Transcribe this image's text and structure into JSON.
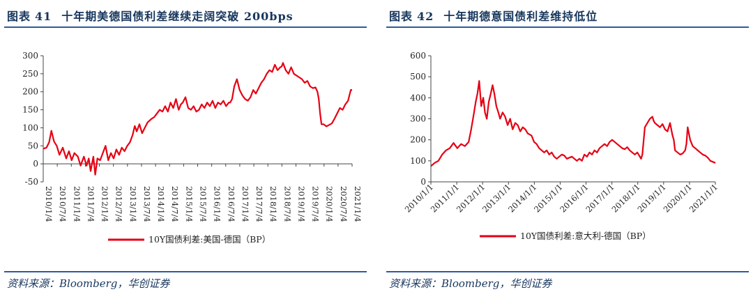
{
  "charts": [
    {
      "title_prefix": "图表",
      "title_number": "41",
      "title_text": "十年期美德国债利差继续走阔突破 200bps",
      "source": "资料来源：Bloomberg，华创证券",
      "chart_data": {
        "type": "line",
        "title": "十年期美德国债利差继续走阔突破 200bps",
        "x_ticks": [
          "2010/1/4",
          "2010/7/4",
          "2011/1/4",
          "2011/7/4",
          "2012/1/4",
          "2012/7/4",
          "2013/1/4",
          "2013/7/4",
          "2014/1/4",
          "2014/7/4",
          "2015/1/4",
          "2015/7/4",
          "2016/1/4",
          "2016/7/4",
          "2017/1/4",
          "2017/7/4",
          "2018/1/4",
          "2018/7/4",
          "2019/1/4",
          "2019/7/4",
          "2020/1/4",
          "2020/7/4",
          "2021/1/4"
        ],
        "yticks": [
          -50,
          0,
          50,
          100,
          150,
          200,
          250,
          300
        ],
        "ylim": [
          -50,
          300
        ],
        "xlim": [
          2010.0,
          2021.4
        ],
        "legend": "top-center-below",
        "series": [
          {
            "name": "10Y国债利差:美国-德国（BP）",
            "color": "#e60012",
            "x": [
              2010.0,
              2010.12,
              2010.22,
              2010.3,
              2010.4,
              2010.5,
              2010.6,
              2010.72,
              2010.85,
              2010.95,
              2011.05,
              2011.15,
              2011.28,
              2011.38,
              2011.5,
              2011.6,
              2011.68,
              2011.75,
              2011.85,
              2011.92,
              2012.0,
              2012.1,
              2012.2,
              2012.3,
              2012.4,
              2012.5,
              2012.6,
              2012.7,
              2012.8,
              2012.9,
              2013.0,
              2013.1,
              2013.2,
              2013.3,
              2013.38,
              2013.45,
              2013.55,
              2013.65,
              2013.75,
              2013.85,
              2014.0,
              2014.1,
              2014.2,
              2014.3,
              2014.4,
              2014.5,
              2014.6,
              2014.7,
              2014.8,
              2014.9,
              2015.0,
              2015.08,
              2015.15,
              2015.25,
              2015.35,
              2015.45,
              2015.55,
              2015.65,
              2015.75,
              2015.85,
              2015.95,
              2016.05,
              2016.15,
              2016.25,
              2016.35,
              2016.45,
              2016.55,
              2016.65,
              2016.75,
              2016.85,
              2016.9,
              2016.97,
              2017.05,
              2017.15,
              2017.25,
              2017.35,
              2017.45,
              2017.55,
              2017.65,
              2017.75,
              2017.85,
              2017.95,
              2018.05,
              2018.15,
              2018.25,
              2018.35,
              2018.45,
              2018.55,
              2018.65,
              2018.75,
              2018.8,
              2018.85,
              2018.95,
              2019.05,
              2019.15,
              2019.25,
              2019.35,
              2019.45,
              2019.55,
              2019.65,
              2019.75,
              2019.85,
              2019.95,
              2020.05,
              2020.12,
              2020.17,
              2020.22,
              2020.27,
              2020.35,
              2020.45,
              2020.55,
              2020.65,
              2020.75,
              2020.85,
              2020.95,
              2021.05,
              2021.15,
              2021.25,
              2021.35,
              2021.4
            ],
            "y": [
              42,
              45,
              60,
              92,
              62,
              50,
              25,
              45,
              15,
              35,
              10,
              30,
              20,
              -5,
              20,
              -5,
              15,
              -20,
              20,
              -30,
              15,
              10,
              30,
              50,
              10,
              30,
              15,
              40,
              25,
              45,
              35,
              50,
              60,
              80,
              105,
              90,
              110,
              85,
              100,
              115,
              125,
              130,
              140,
              150,
              145,
              160,
              145,
              170,
              155,
              180,
              150,
              165,
              170,
              185,
              155,
              150,
              160,
              145,
              150,
              165,
              155,
              170,
              160,
              175,
              155,
              170,
              165,
              175,
              160,
              170,
              170,
              180,
              215,
              235,
              205,
              190,
              180,
              175,
              185,
              205,
              195,
              210,
              225,
              235,
              250,
              260,
              255,
              275,
              260,
              268,
              270,
              280,
              260,
              250,
              268,
              250,
              245,
              240,
              235,
              225,
              230,
              215,
              210,
              212,
              200,
              180,
              140,
              110,
              110,
              104,
              108,
              112,
              125,
              140,
              155,
              150,
              165,
              175,
              205,
              205
            ]
          }
        ]
      }
    },
    {
      "title_prefix": "图表",
      "title_number": "42",
      "title_text": "十年期德意国债利差维持低位",
      "source": "资料来源：Bloomberg，华创证券",
      "chart_data": {
        "type": "line",
        "title": "十年期德意国债利差维持低位",
        "x_ticks": [
          "2010/1/1",
          "2011/1/1",
          "2012/1/1",
          "2013/1/1",
          "2014/1/1",
          "2015/1/1",
          "2016/1/1",
          "2017/1/1",
          "2018/1/1",
          "2019/1/1",
          "2020/1/1",
          "2021/1/1"
        ],
        "yticks": [
          0,
          100,
          200,
          300,
          400,
          500,
          600
        ],
        "ylim": [
          0,
          600
        ],
        "xlim": [
          2010.0,
          2021.3
        ],
        "legend": "top-center-below",
        "series": [
          {
            "name": "10Y国债利差:意大利-德国（BP）",
            "color": "#e60012",
            "x": [
              2010.0,
              2010.15,
              2010.3,
              2010.45,
              2010.6,
              2010.75,
              2010.9,
              2011.05,
              2011.2,
              2011.35,
              2011.5,
              2011.6,
              2011.7,
              2011.78,
              2011.85,
              2011.92,
              2012.0,
              2012.08,
              2012.15,
              2012.22,
              2012.3,
              2012.38,
              2012.45,
              2012.52,
              2012.6,
              2012.68,
              2012.75,
              2012.85,
              2012.95,
              2013.05,
              2013.15,
              2013.25,
              2013.35,
              2013.45,
              2013.55,
              2013.65,
              2013.75,
              2013.85,
              2014.0,
              2014.1,
              2014.2,
              2014.3,
              2014.4,
              2014.5,
              2014.6,
              2014.7,
              2014.8,
              2014.9,
              2015.0,
              2015.1,
              2015.2,
              2015.3,
              2015.4,
              2015.5,
              2015.6,
              2015.7,
              2015.8,
              2015.9,
              2016.0,
              2016.1,
              2016.2,
              2016.3,
              2016.4,
              2016.5,
              2016.6,
              2016.7,
              2016.8,
              2016.9,
              2017.0,
              2017.1,
              2017.2,
              2017.3,
              2017.4,
              2017.5,
              2017.6,
              2017.7,
              2017.8,
              2017.9,
              2018.0,
              2018.1,
              2018.2,
              2018.3,
              2018.35,
              2018.4,
              2018.5,
              2018.6,
              2018.7,
              2018.8,
              2018.85,
              2018.9,
              2019.0,
              2019.1,
              2019.2,
              2019.3,
              2019.4,
              2019.5,
              2019.6,
              2019.65,
              2019.7,
              2019.8,
              2019.9,
              2020.0,
              2020.1,
              2020.15,
              2020.2,
              2020.3,
              2020.4,
              2020.5,
              2020.6,
              2020.7,
              2020.8,
              2020.9,
              2021.0,
              2021.1,
              2021.2,
              2021.3
            ],
            "y": [
              75,
              90,
              100,
              130,
              150,
              160,
              185,
              160,
              180,
              170,
              190,
              250,
              320,
              380,
              420,
              480,
              360,
              400,
              330,
              300,
              380,
              420,
              460,
              420,
              360,
              330,
              300,
              330,
              310,
              270,
              300,
              250,
              280,
              270,
              240,
              260,
              250,
              230,
              220,
              190,
              180,
              160,
              150,
              140,
              150,
              130,
              140,
              120,
              110,
              120,
              130,
              125,
              110,
              115,
              120,
              110,
              100,
              110,
              100,
              130,
              120,
              140,
              130,
              150,
              140,
              160,
              170,
              180,
              170,
              190,
              200,
              190,
              180,
              170,
              160,
              155,
              165,
              150,
              140,
              130,
              140,
              120,
              110,
              130,
              260,
              280,
              300,
              310,
              290,
              280,
              270,
              260,
              275,
              250,
              240,
              280,
              220,
              200,
              150,
              140,
              130,
              135,
              150,
              180,
              260,
              200,
              170,
              160,
              150,
              140,
              130,
              125,
              115,
              100,
              95,
              90
            ]
          }
        ]
      }
    }
  ]
}
